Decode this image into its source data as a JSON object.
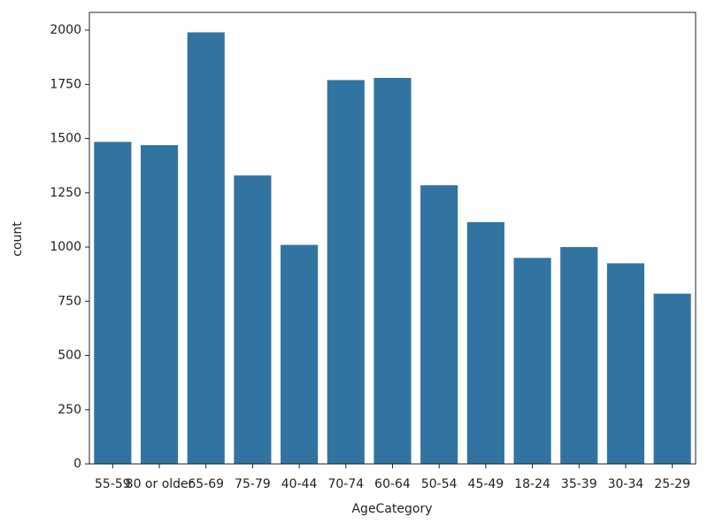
{
  "chart_data": {
    "type": "bar",
    "x_label": "AgeCategory",
    "y_label": "count",
    "categories": [
      "55-59",
      "80 or older",
      "65-69",
      "75-79",
      "40-44",
      "70-74",
      "60-64",
      "50-54",
      "45-49",
      "18-24",
      "35-39",
      "30-34",
      "25-29"
    ],
    "values": [
      1485,
      1470,
      1990,
      1330,
      1010,
      1770,
      1780,
      1285,
      1115,
      950,
      1000,
      925,
      785
    ],
    "color": "#3274a1",
    "ylim": [
      0,
      2082
    ],
    "yticks": [
      0,
      250,
      500,
      750,
      1000,
      1250,
      1500,
      1750,
      2000
    ],
    "grid": false
  }
}
